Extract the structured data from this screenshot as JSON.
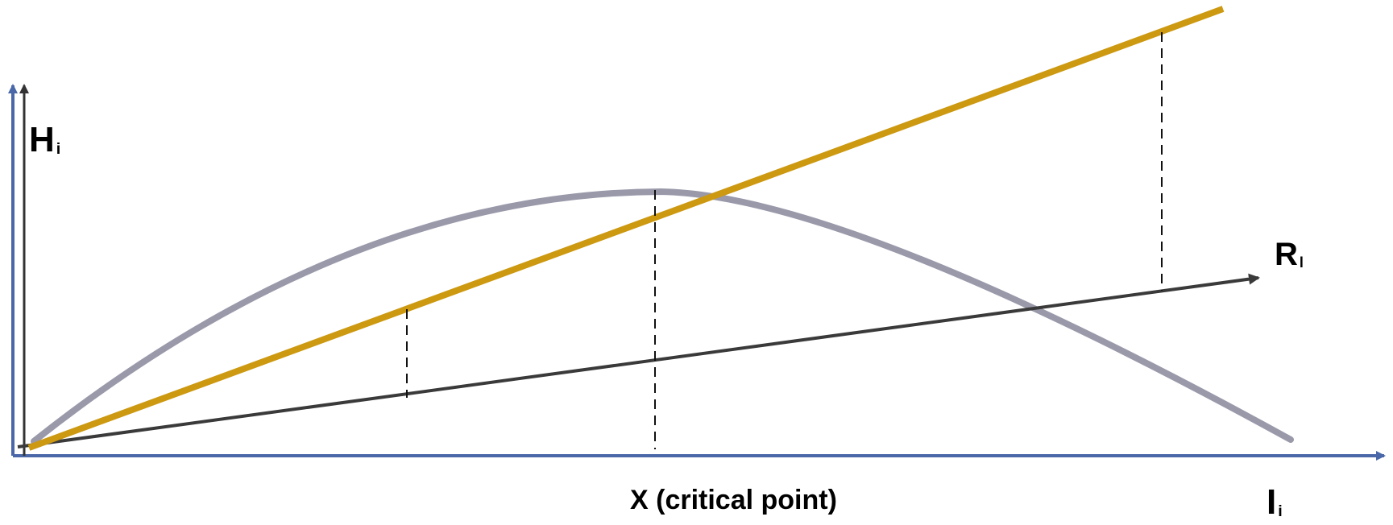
{
  "labels": {
    "vertical_axis": {
      "main": "H",
      "sub": "i"
    },
    "ray": {
      "main": "R",
      "sub": "l"
    },
    "critical_point": "X (critical point)",
    "horizontal_axis": {
      "main": "I",
      "sub": "i"
    }
  },
  "colors": {
    "axis_blue": "#4a67a8",
    "axis_dark": "#333333",
    "curve_gray": "#9999aa",
    "line_gold": "#cc9911",
    "ray_dark": "#3a3a3a",
    "dashed": "#111111"
  }
}
